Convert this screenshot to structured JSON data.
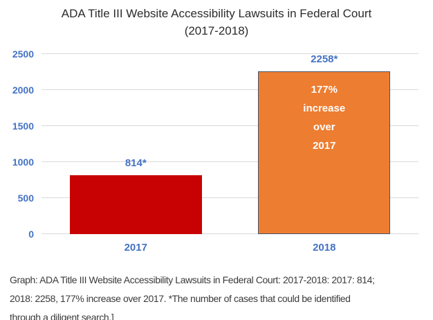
{
  "chart_data": {
    "type": "bar",
    "title": "ADA Title III Website Accessibility Lawsuits in Federal Court (2017-2018)",
    "categories": [
      "2017",
      "2018"
    ],
    "values": [
      814,
      2258
    ],
    "bar_value_labels": [
      "814*",
      "2258*"
    ],
    "series_colors": [
      "#c80202",
      "#ed7d31"
    ],
    "bar_border_colors": [
      "none",
      "#44546a"
    ],
    "annotation": {
      "target_bar": "2018",
      "lines": [
        "177%",
        "increase",
        "over",
        "2017"
      ],
      "text_color": "#ffffff"
    },
    "xlabel": "",
    "ylabel": "",
    "ylim": [
      0,
      2500
    ],
    "yticks": [
      0,
      500,
      1000,
      1500,
      2000,
      2500
    ],
    "grid": true,
    "legend": "none",
    "axis_label_color": "#4472c4",
    "gridline_color": "#d9d9d9"
  },
  "caption": {
    "lines": [
      "Graph: ADA Title III Website Accessibility Lawsuits in Federal Court: 2017-2018: 2017: 814;",
      "2018: 2258, 177% increase over 2017. *The number of cases that could be identified",
      "through a diligent search.]"
    ]
  },
  "colors": {
    "title_text": "#2b2b2b",
    "caption_text": "#3a3a3a",
    "background": "#ffffff"
  }
}
